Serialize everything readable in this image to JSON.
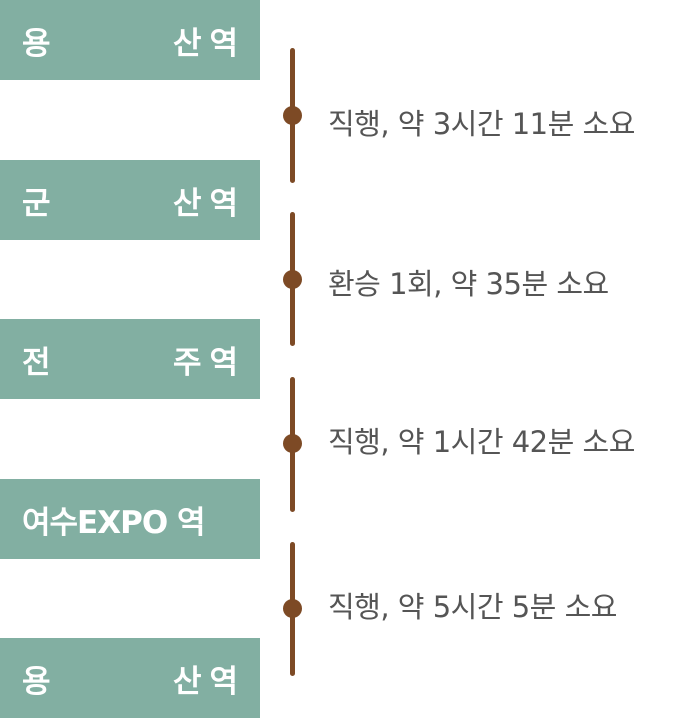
{
  "stations": [
    {
      "left": "용",
      "right": "산역"
    },
    {
      "left": "군",
      "right": "산역"
    },
    {
      "left": "전",
      "right": "주역"
    },
    {
      "full": "여수EXPO 역"
    },
    {
      "left": "용",
      "right": "산역"
    }
  ],
  "segments": [
    {
      "text": "직행, 약 3시간 11분 소요"
    },
    {
      "text": "환승 1회, 약 35분 소요"
    },
    {
      "text": "직행, 약 1시간 42분 소요"
    },
    {
      "text": "직행, 약 5시간 5분 소요"
    }
  ]
}
